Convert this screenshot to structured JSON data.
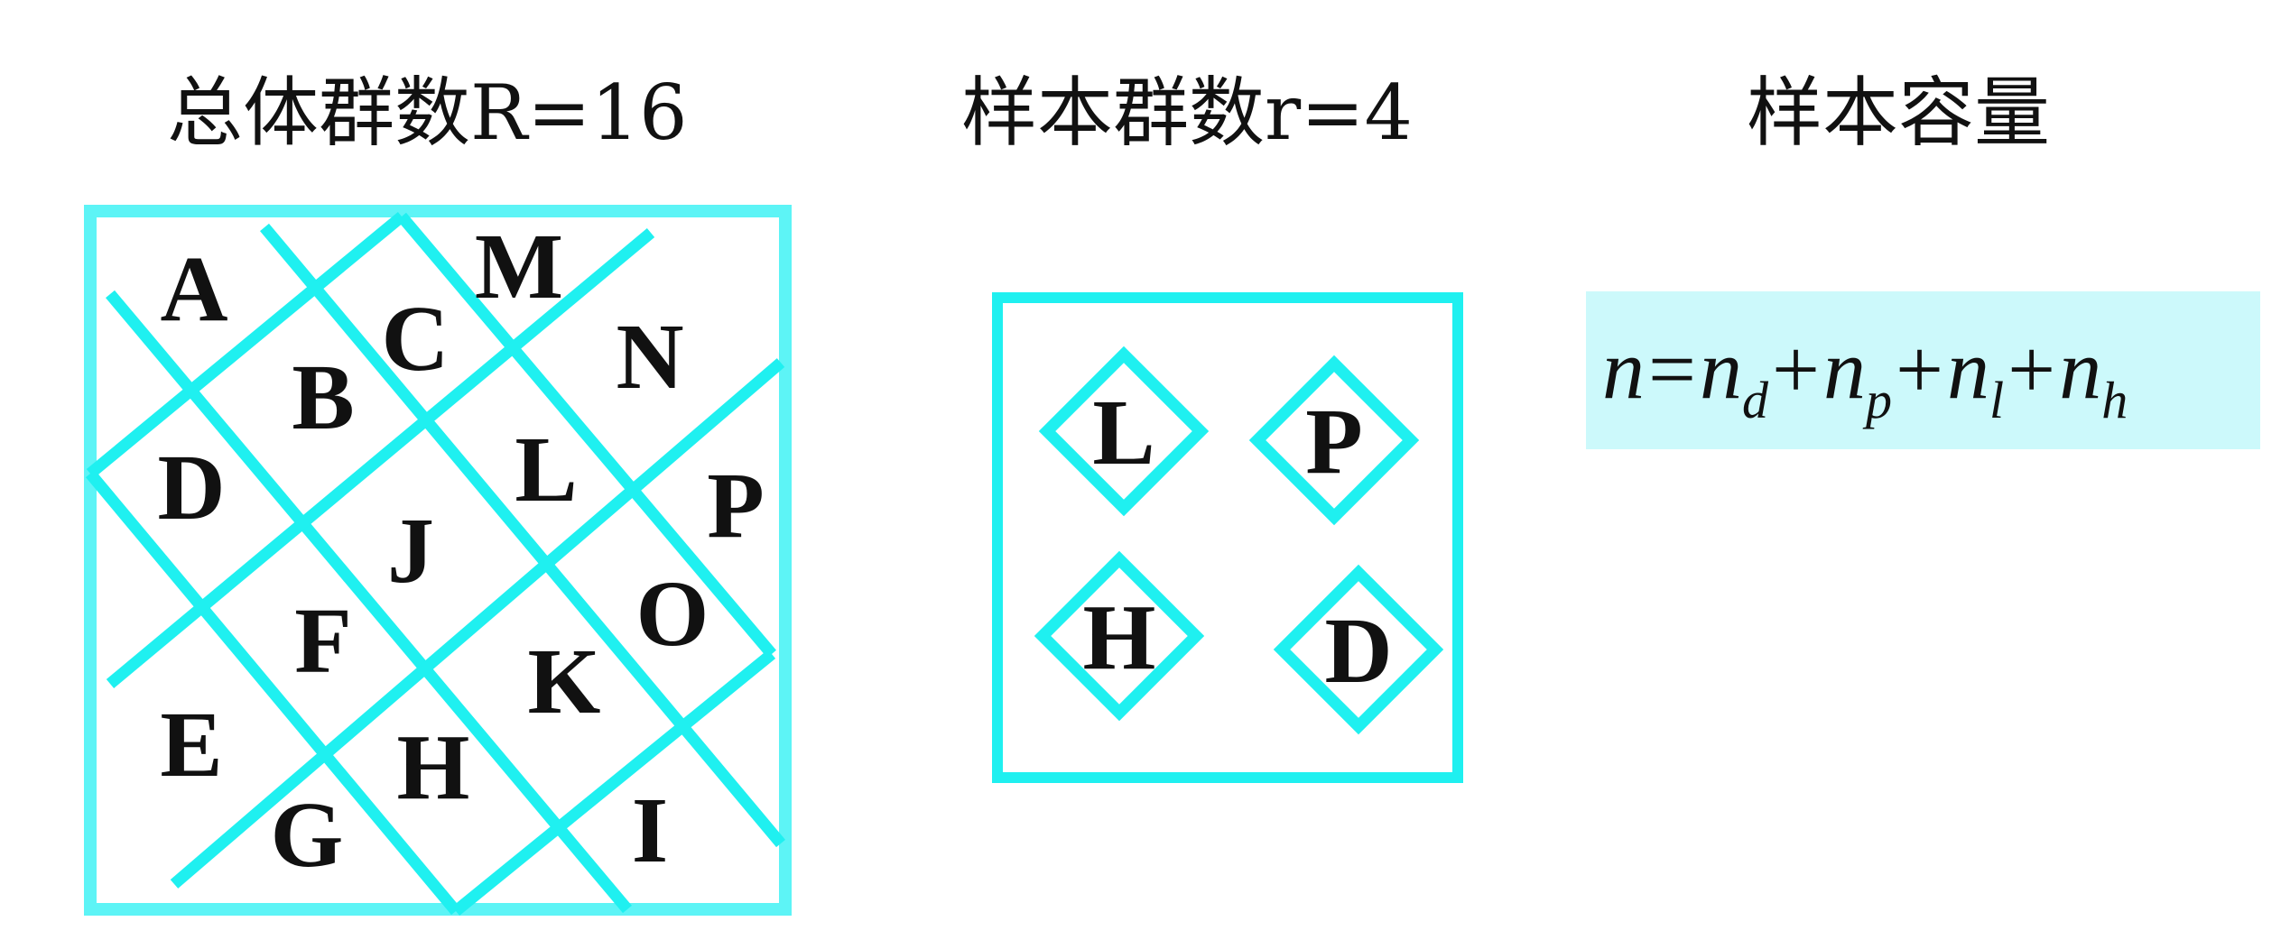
{
  "headings": {
    "population": "总体群数R=16",
    "sample_clusters": "样本群数r=4",
    "sample_size": "样本容量"
  },
  "population_cells": [
    "A",
    "M",
    "C",
    "N",
    "B",
    "L",
    "D",
    "P",
    "J",
    "O",
    "F",
    "K",
    "E",
    "H",
    "G",
    "I"
  ],
  "sample_cells": [
    "L",
    "P",
    "H",
    "D"
  ],
  "formula": {
    "lhs": "n",
    "eq": "=",
    "plus": "+",
    "base": "n",
    "subscripts": [
      "d",
      "p",
      "l",
      "h"
    ]
  },
  "colors": {
    "line_cyan": "#1ff0f0",
    "frame_cyan": "#5df4f6",
    "formula_bg": "#ccf9fb",
    "text": "#111111"
  }
}
